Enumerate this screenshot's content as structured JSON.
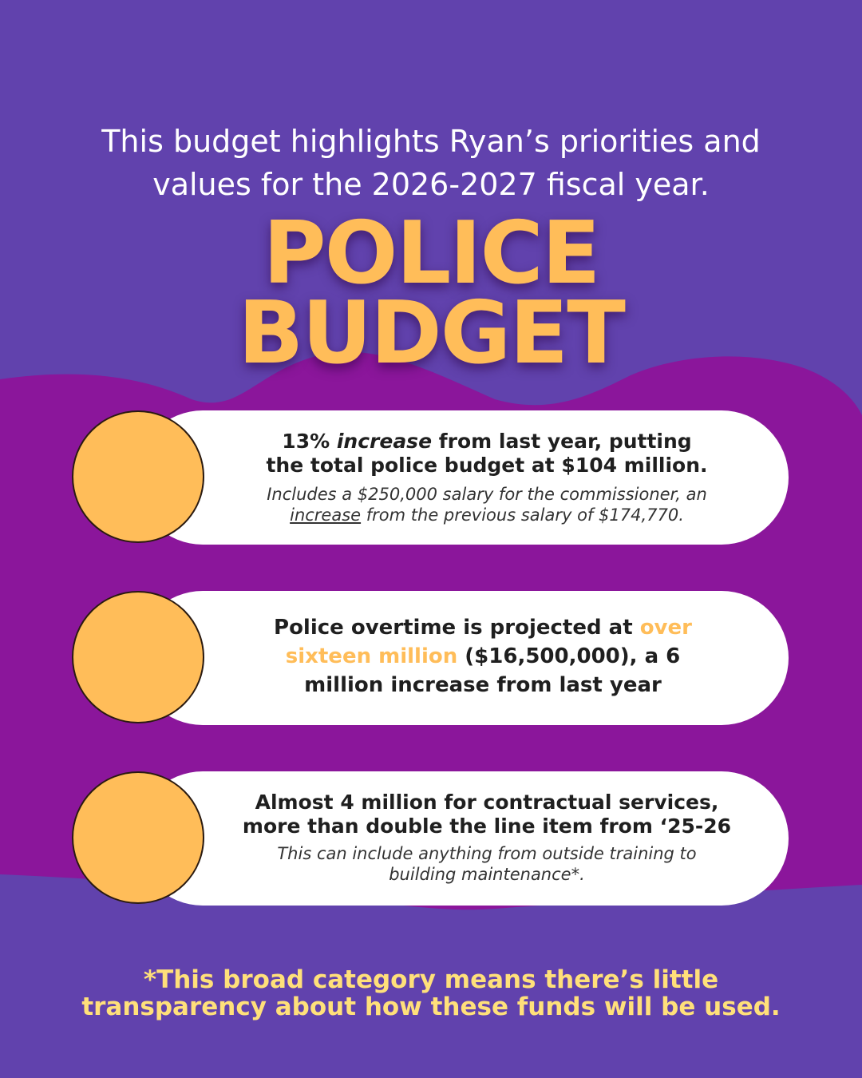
{
  "intro": {
    "line1": "This budget highlights Ryan’s priorities and",
    "line2": "values for the 2026-2027 fiscal year."
  },
  "title": {
    "line1": "POLICE",
    "line2": "BUDGET"
  },
  "items": [
    {
      "head_pct": "13% ",
      "head_em": "increase",
      "head_rest1": " from last year, putting",
      "head_line2": "the total police budget at $104 million.",
      "sub_line1": "Includes a $250,000 salary for the commissioner, an",
      "sub_u": "increase",
      "sub_rest": " from the previous salary of $174,770."
    },
    {
      "head_a": "Police overtime is projected at ",
      "head_hl": "over sixteen million",
      "head_b": " ($16,500,000), a 6 million increase from last year"
    },
    {
      "head_line1": "Almost 4 million for contractual services,",
      "head_line2": "more than double the line item from ‘25-26",
      "sub_line1": "This can include anything from outside training to",
      "sub_line2": "building maintenance*."
    }
  ],
  "footnote": {
    "line1": "*This broad category means there’s little",
    "line2": "transparency about how these funds will be used."
  },
  "colors": {
    "background": "#6142ad",
    "blob": "#8b169b",
    "accent": "#ffbd59",
    "footnote": "#ffe07a"
  }
}
